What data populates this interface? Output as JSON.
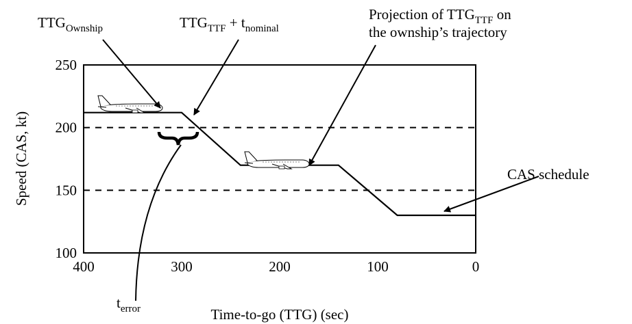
{
  "chart_data": {
    "type": "line",
    "title": "",
    "xlabel": "Time-to-go (TTG)  (sec)",
    "ylabel": "Speed  (CAS, kt)",
    "xlim": [
      400,
      0
    ],
    "ylim": [
      100,
      250
    ],
    "x_reversed": true,
    "xticks": [
      400,
      300,
      200,
      100,
      0
    ],
    "yticks": [
      100,
      150,
      200,
      250
    ],
    "grid": "dashed horizontal lines at 150 and 200",
    "reference_lines": [
      150,
      200
    ],
    "series": [
      {
        "x": [
          400,
          300,
          240,
          170,
          140,
          80,
          0
        ],
        "y": [
          212,
          212,
          170,
          170,
          170,
          130,
          130
        ]
      }
    ],
    "annotations": [
      {
        "id": "ownship",
        "base": "TTG",
        "sub": "Ownship"
      },
      {
        "id": "nominal",
        "base": "TTG",
        "sub": "TTF",
        "mid": " + t",
        "sub2": "nominal"
      },
      {
        "id": "projection",
        "line1": "Projection of TTG",
        "sub": "TTF",
        "line1_end": " on",
        "line2": "the ownship’s trajectory"
      },
      {
        "id": "cas",
        "text": "CAS schedule"
      },
      {
        "id": "error",
        "base": "t",
        "sub": "error"
      }
    ],
    "aircraft_icons": [
      "airplane-icon",
      "airplane-icon"
    ]
  }
}
